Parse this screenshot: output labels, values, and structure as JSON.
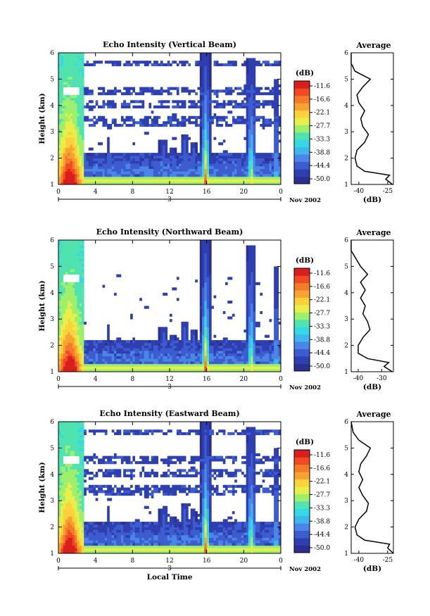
{
  "figure": {
    "xlabel": "Local Time",
    "date_label": "Nov 2002",
    "day_label": "3",
    "colorbar_unit": "(dB)",
    "colorbar_ticks": [
      "-11.6",
      "-16.6",
      "-22.1",
      "-27.7",
      "-33.3",
      "-38.8",
      "-44.4",
      "-50.0"
    ],
    "colors": {
      "scale": [
        "#2b2f8f",
        "#2e3fb0",
        "#3c5ccf",
        "#4a86e8",
        "#3fb7ee",
        "#34d9e6",
        "#50e3b0",
        "#9ef06c",
        "#e8ee4a",
        "#fbd23c",
        "#f7a332",
        "#f47b2a",
        "#ef4a24",
        "#d91e1e"
      ]
    }
  },
  "chart_data": [
    {
      "type": "heatmap",
      "title": "Echo Intensity (Vertical Beam)",
      "ylabel": "Height (km)",
      "x_ticks": [
        "0",
        "4",
        "8",
        "12",
        "16",
        "20",
        "0"
      ],
      "y_ticks": [
        "1",
        "2",
        "3",
        "4",
        "5",
        "6"
      ],
      "xlim": [
        0,
        24
      ],
      "ylim": [
        1,
        6
      ],
      "value_unit": "dB",
      "value_range": [
        -50,
        -11.6
      ],
      "profile": {
        "title": "Average",
        "xlabel": "(dB)",
        "x_ticks": [
          "-40",
          "-25"
        ],
        "y_ticks": [
          "1",
          "2",
          "3",
          "4",
          "5",
          "6"
        ],
        "xlim": [
          -44,
          -22
        ],
        "heights": [
          1.0,
          1.2,
          1.35,
          1.5,
          1.7,
          2.0,
          2.3,
          2.6,
          2.9,
          3.2,
          3.5,
          3.8,
          4.1,
          4.4,
          4.7,
          5.0,
          5.3,
          5.6,
          6.0
        ],
        "values": [
          -22.5,
          -26,
          -24,
          -37,
          -41,
          -42,
          -41,
          -37,
          -35,
          -38,
          -39,
          -37,
          -40,
          -41,
          -38,
          -34,
          -42,
          -44,
          -44
        ]
      }
    },
    {
      "type": "heatmap",
      "title": "Echo Intensity (Northward Beam)",
      "ylabel": "Height (km)",
      "x_ticks": [
        "0",
        "4",
        "8",
        "12",
        "16",
        "20",
        "0"
      ],
      "y_ticks": [
        "1",
        "2",
        "3",
        "4",
        "5",
        "6"
      ],
      "xlim": [
        0,
        24
      ],
      "ylim": [
        1,
        6
      ],
      "value_unit": "dB",
      "value_range": [
        -50,
        -11.6
      ],
      "profile": {
        "title": "Average",
        "xlabel": "(dB)",
        "x_ticks": [
          "-40",
          "-30"
        ],
        "y_ticks": [
          "1",
          "2",
          "3",
          "4",
          "5",
          "6"
        ],
        "xlim": [
          -43,
          -25
        ],
        "heights": [
          1.0,
          1.2,
          1.35,
          1.5,
          1.7,
          2.0,
          2.3,
          2.6,
          2.9,
          3.2,
          3.5,
          3.8,
          4.1,
          4.4,
          4.7,
          5.0,
          5.3,
          5.6,
          6.0
        ],
        "values": [
          -25.5,
          -29,
          -27,
          -36,
          -40,
          -40,
          -38,
          -35,
          -36,
          -38,
          -37,
          -39,
          -37,
          -39,
          -36,
          -39,
          -41,
          -43,
          -43
        ]
      }
    },
    {
      "type": "heatmap",
      "title": "Echo Intensity (Eastward Beam)",
      "ylabel": "Height (km)",
      "x_ticks": [
        "0",
        "4",
        "8",
        "12",
        "16",
        "20",
        "0"
      ],
      "y_ticks": [
        "1",
        "2",
        "3",
        "4",
        "5",
        "6"
      ],
      "xlim": [
        0,
        24
      ],
      "ylim": [
        1,
        6
      ],
      "value_unit": "dB",
      "value_range": [
        -50,
        -11.6
      ],
      "profile": {
        "title": "Average",
        "xlabel": "(dB)",
        "x_ticks": [
          "-40",
          "-25"
        ],
        "y_ticks": [
          "1",
          "2",
          "3",
          "4",
          "5",
          "6"
        ],
        "xlim": [
          -44,
          -22
        ],
        "heights": [
          1.0,
          1.2,
          1.35,
          1.5,
          1.7,
          2.0,
          2.3,
          2.6,
          2.9,
          3.2,
          3.5,
          3.8,
          4.1,
          4.4,
          4.7,
          5.0,
          5.3,
          5.6,
          6.0
        ],
        "values": [
          -22,
          -25,
          -24,
          -37,
          -41,
          -42,
          -40,
          -36,
          -35,
          -38,
          -40,
          -38,
          -40,
          -39,
          -36,
          -34,
          -40,
          -43,
          -44
        ]
      }
    }
  ]
}
